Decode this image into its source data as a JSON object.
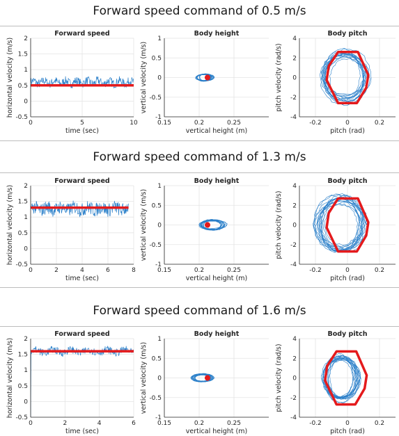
{
  "sections": [
    {
      "title": "Forward speed command of 0.5 m/s"
    },
    {
      "title": "Forward speed command of 1.3 m/s"
    },
    {
      "title": "Forward speed command of 1.6 m/s"
    }
  ],
  "colors": {
    "signal": "#2a7fc9",
    "command": "#e41a1c",
    "grid": "#e3e3e3",
    "axis": "#262626"
  },
  "chart_data": [
    {
      "type": "line",
      "row": 0,
      "title": "Forward speed",
      "xlabel": "time (sec)",
      "ylabel": "horizontal velocity (m/s)",
      "xlim": [
        0,
        10
      ],
      "ylim": [
        -0.5,
        2
      ],
      "xticks": [
        0,
        5,
        10
      ],
      "yticks": [
        -0.5,
        0,
        0.5,
        1,
        1.5,
        2
      ],
      "grid": true,
      "series": [
        {
          "kind": "measured",
          "mean": 0.6,
          "amplitude": 0.14,
          "duration": 10
        },
        {
          "kind": "command",
          "value": 0.5
        }
      ]
    },
    {
      "type": "scatter",
      "row": 0,
      "title": "Body height",
      "xlabel": "vertical height (m)",
      "ylabel": "vertical velocity (m/s)",
      "xlim": [
        0.15,
        0.3
      ],
      "ylim": [
        -1,
        1
      ],
      "xticks": [
        0.15,
        0.2,
        0.25
      ],
      "yticks": [
        -1,
        -0.5,
        0,
        0.5,
        1
      ],
      "grid": true,
      "series": [
        {
          "kind": "measured",
          "center": [
            0.208,
            0
          ],
          "radius": [
            0.011,
            0.09
          ]
        },
        {
          "kind": "command",
          "center": [
            0.212,
            0
          ],
          "radius": [
            0.003,
            0.055
          ]
        }
      ]
    },
    {
      "type": "line",
      "row": 0,
      "title": "Body pitch",
      "xlabel": "pitch (rad)",
      "ylabel": "pitch velocity (rad/s)",
      "xlim": [
        -0.3,
        0.3
      ],
      "ylim": [
        -4,
        4
      ],
      "xticks": [
        -0.2,
        0,
        0.2
      ],
      "yticks": [
        -4,
        -2,
        0,
        2,
        4
      ],
      "grid": true,
      "series": [
        {
          "kind": "measured",
          "center": [
            -0.02,
            0.1
          ],
          "radius": [
            0.13,
            2.6
          ]
        },
        {
          "kind": "command",
          "center": [
            0,
            0
          ],
          "radius": [
            0.13,
            2.6
          ]
        }
      ]
    },
    {
      "type": "line",
      "row": 1,
      "title": "Forward speed",
      "xlabel": "time (sec)",
      "ylabel": "horizontal velocity (m/s)",
      "xlim": [
        0,
        8
      ],
      "ylim": [
        -0.5,
        2
      ],
      "xticks": [
        0,
        2,
        4,
        6,
        8
      ],
      "yticks": [
        -0.5,
        0,
        0.5,
        1,
        1.5,
        2
      ],
      "grid": true,
      "series": [
        {
          "kind": "measured",
          "mean": 1.27,
          "amplitude": 0.22,
          "duration": 7.6
        },
        {
          "kind": "command",
          "value": 1.3
        }
      ]
    },
    {
      "type": "scatter",
      "row": 1,
      "title": "Body height",
      "xlabel": "vertical height (m)",
      "ylabel": "vertical velocity (m/s)",
      "xlim": [
        0.15,
        0.3
      ],
      "ylim": [
        -1,
        1
      ],
      "xticks": [
        0.15,
        0.2,
        0.25
      ],
      "yticks": [
        -1,
        -0.5,
        0,
        0.5,
        1
      ],
      "grid": true,
      "series": [
        {
          "kind": "measured",
          "center": [
            0.219,
            0
          ],
          "radius": [
            0.016,
            0.13
          ]
        },
        {
          "kind": "command",
          "center": [
            0.212,
            0
          ],
          "radius": [
            0.003,
            0.055
          ]
        }
      ]
    },
    {
      "type": "line",
      "row": 1,
      "title": "Body pitch",
      "xlabel": "pitch (rad)",
      "ylabel": "pitch velocity (rad/s)",
      "xlim": [
        -0.3,
        0.3
      ],
      "ylim": [
        -4,
        4
      ],
      "xticks": [
        -0.2,
        0,
        0.2
      ],
      "yticks": [
        -4,
        -2,
        0,
        2,
        4
      ],
      "grid": true,
      "series": [
        {
          "kind": "measured",
          "center": [
            -0.04,
            0.1
          ],
          "radius": [
            0.14,
            2.8
          ]
        },
        {
          "kind": "command",
          "center": [
            0,
            0
          ],
          "radius": [
            0.13,
            2.7
          ]
        }
      ]
    },
    {
      "type": "line",
      "row": 2,
      "title": "Forward speed",
      "xlabel": "time (sec)",
      "ylabel": "horizontal velocity (m/s)",
      "xlim": [
        0,
        6
      ],
      "ylim": [
        -0.5,
        2
      ],
      "xticks": [
        0,
        2,
        4,
        6
      ],
      "yticks": [
        -0.5,
        0,
        0.5,
        1,
        1.5,
        2
      ],
      "grid": true,
      "series": [
        {
          "kind": "measured",
          "mean": 1.6,
          "amplitude": 0.12,
          "duration": 6
        },
        {
          "kind": "command",
          "value": 1.6
        }
      ]
    },
    {
      "type": "scatter",
      "row": 2,
      "title": "Body height",
      "xlabel": "vertical height (m)",
      "ylabel": "vertical velocity (m/s)",
      "xlim": [
        0.15,
        0.3
      ],
      "ylim": [
        -1,
        1
      ],
      "xticks": [
        0.15,
        0.2,
        0.25
      ],
      "yticks": [
        -1,
        -0.5,
        0,
        0.5,
        1
      ],
      "grid": true,
      "series": [
        {
          "kind": "measured",
          "center": [
            0.205,
            0
          ],
          "radius": [
            0.013,
            0.1
          ]
        },
        {
          "kind": "command",
          "center": [
            0.212,
            0
          ],
          "radius": [
            0.003,
            0.055
          ]
        }
      ]
    },
    {
      "type": "line",
      "row": 2,
      "title": "Body pitch",
      "xlabel": "pitch (rad)",
      "ylabel": "pitch velocity (rad/s)",
      "xlim": [
        -0.3,
        0.3
      ],
      "ylim": [
        -4,
        4
      ],
      "xticks": [
        -0.2,
        0,
        0.2
      ],
      "yticks": [
        -4,
        -2,
        0,
        2,
        4
      ],
      "grid": true,
      "series": [
        {
          "kind": "measured",
          "center": [
            -0.04,
            0
          ],
          "radius": [
            0.1,
            2.3
          ]
        },
        {
          "kind": "command",
          "center": [
            -0.01,
            0
          ],
          "radius": [
            0.13,
            2.7
          ]
        }
      ]
    }
  ]
}
